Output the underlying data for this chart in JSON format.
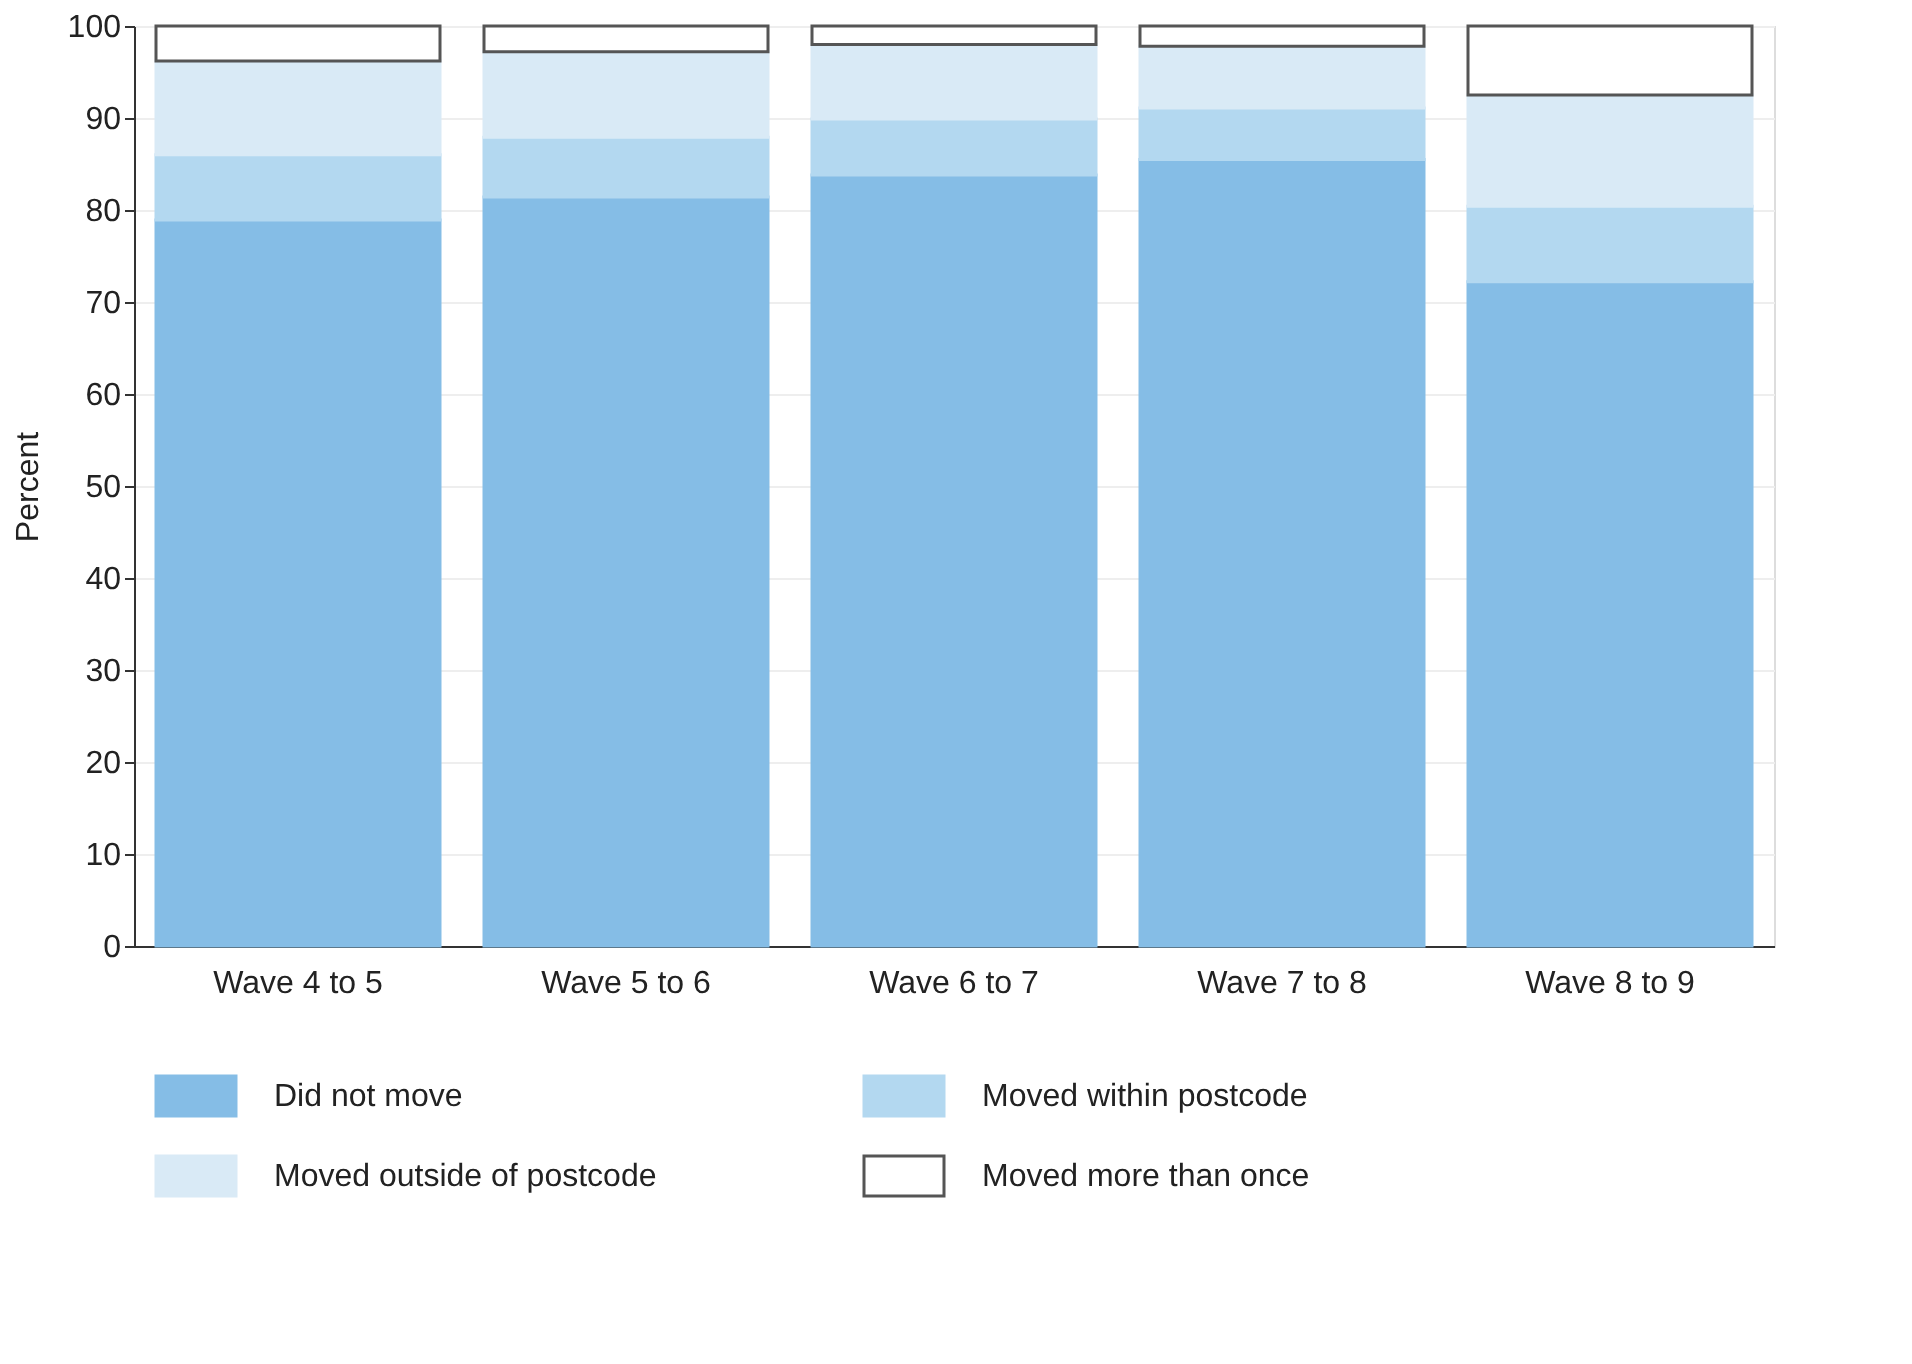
{
  "chart_data": {
    "type": "bar",
    "stacked": true,
    "ylabel": "Percent",
    "categories": [
      "Wave 4 to 5",
      "Wave 5 to 6",
      "Wave 6 to 7",
      "Wave 7 to 8",
      "Wave 8 to 9"
    ],
    "series": [
      {
        "name": "Did not move",
        "color": "#85bde6",
        "values": [
          78.9,
          81.4,
          83.8,
          85.5,
          72.2
        ]
      },
      {
        "name": "Moved within postcode",
        "color": "#b3d8f0",
        "values": [
          7.1,
          6.5,
          6.1,
          5.6,
          8.2
        ]
      },
      {
        "name": "Moved outside of postcode",
        "color": "#d9eaf6",
        "values": [
          10.2,
          9.3,
          8.1,
          6.7,
          12.1
        ]
      },
      {
        "name": "Moved more than once",
        "color": "#ffffff",
        "values": [
          3.8,
          2.8,
          2.0,
          2.2,
          7.5
        ]
      }
    ],
    "ylim": [
      0,
      100
    ],
    "yticks": [
      0,
      10,
      20,
      30,
      40,
      50,
      60,
      70,
      80,
      90,
      100
    ],
    "grid": "y",
    "legend": "bottom"
  }
}
